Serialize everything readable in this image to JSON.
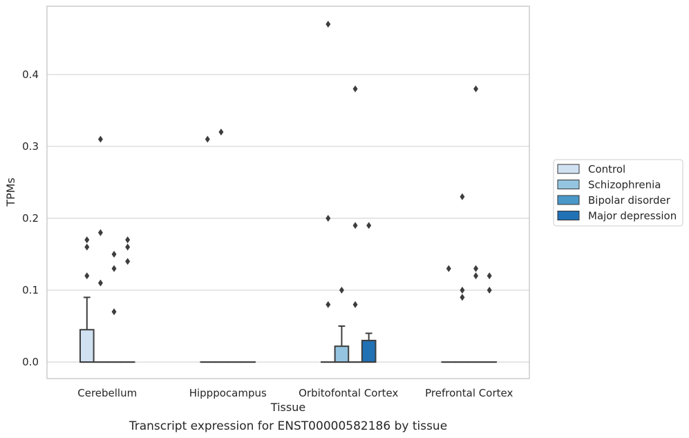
{
  "caption": "Transcript expression for ENST00000582186 by tissue",
  "chart_data": {
    "type": "box",
    "xlabel": "Tissue",
    "ylabel": "TPMs",
    "ylim": [
      -0.023,
      0.495
    ],
    "yticks": [
      0.0,
      0.1,
      0.2,
      0.3,
      0.4
    ],
    "ytick_labels": [
      "0.0",
      "0.1",
      "0.2",
      "0.3",
      "0.4"
    ],
    "grid": "horizontal",
    "legend_position": "right",
    "categories": [
      "Cerebellum",
      "Hipppocampus",
      "Orbitofontal Cortex",
      "Prefrontal Cortex"
    ],
    "series": [
      {
        "name": "Control",
        "color": "#d0e1f2",
        "boxes": [
          {
            "q1": 0.0,
            "median": 0.0,
            "q3": 0.045,
            "whisker_low": 0.0,
            "whisker_high": 0.09,
            "fliers": [
              0.12,
              0.16,
              0.17
            ]
          },
          {
            "q1": 0.0,
            "median": 0.0,
            "q3": 0.0,
            "whisker_low": 0.0,
            "whisker_high": 0.0,
            "fliers": [
              0.31
            ]
          },
          {
            "q1": 0.0,
            "median": 0.0,
            "q3": 0.0,
            "whisker_low": 0.0,
            "whisker_high": 0.0,
            "fliers": [
              0.08,
              0.2,
              0.47
            ]
          },
          {
            "q1": 0.0,
            "median": 0.0,
            "q3": 0.0,
            "whisker_low": 0.0,
            "whisker_high": 0.0,
            "fliers": [
              0.13
            ]
          }
        ]
      },
      {
        "name": "Schizophrenia",
        "color": "#94c4df",
        "boxes": [
          {
            "q1": 0.0,
            "median": 0.0,
            "q3": 0.0,
            "whisker_low": 0.0,
            "whisker_high": 0.0,
            "fliers": [
              0.11,
              0.18,
              0.31
            ]
          },
          {
            "q1": 0.0,
            "median": 0.0,
            "q3": 0.0,
            "whisker_low": 0.0,
            "whisker_high": 0.0,
            "fliers": [
              0.32
            ]
          },
          {
            "q1": 0.0,
            "median": 0.0,
            "q3": 0.022,
            "whisker_low": 0.0,
            "whisker_high": 0.05,
            "fliers": [
              0.1
            ]
          },
          {
            "q1": 0.0,
            "median": 0.0,
            "q3": 0.0,
            "whisker_low": 0.0,
            "whisker_high": 0.0,
            "fliers": [
              0.09,
              0.1,
              0.23
            ]
          }
        ]
      },
      {
        "name": "Bipolar disorder",
        "color": "#4a98c9",
        "boxes": [
          {
            "q1": 0.0,
            "median": 0.0,
            "q3": 0.0,
            "whisker_low": 0.0,
            "whisker_high": 0.0,
            "fliers": [
              0.07,
              0.13,
              0.15
            ]
          },
          {
            "q1": 0.0,
            "median": 0.0,
            "q3": 0.0,
            "whisker_low": 0.0,
            "whisker_high": 0.0,
            "fliers": []
          },
          {
            "q1": 0.0,
            "median": 0.0,
            "q3": 0.0,
            "whisker_low": 0.0,
            "whisker_high": 0.0,
            "fliers": [
              0.08,
              0.19,
              0.38
            ]
          },
          {
            "q1": 0.0,
            "median": 0.0,
            "q3": 0.0,
            "whisker_low": 0.0,
            "whisker_high": 0.0,
            "fliers": [
              0.12,
              0.13,
              0.38
            ]
          }
        ]
      },
      {
        "name": "Major depression",
        "color": "#2171b5",
        "boxes": [
          {
            "q1": 0.0,
            "median": 0.0,
            "q3": 0.0,
            "whisker_low": 0.0,
            "whisker_high": 0.0,
            "fliers": [
              0.14,
              0.16,
              0.17
            ]
          },
          {
            "q1": 0.0,
            "median": 0.0,
            "q3": 0.0,
            "whisker_low": 0.0,
            "whisker_high": 0.0,
            "fliers": []
          },
          {
            "q1": 0.0,
            "median": 0.0,
            "q3": 0.03,
            "whisker_low": 0.0,
            "whisker_high": 0.04,
            "fliers": [
              0.19
            ]
          },
          {
            "q1": 0.0,
            "median": 0.0,
            "q3": 0.0,
            "whisker_low": 0.0,
            "whisker_high": 0.0,
            "fliers": [
              0.1,
              0.12
            ]
          }
        ]
      }
    ]
  }
}
